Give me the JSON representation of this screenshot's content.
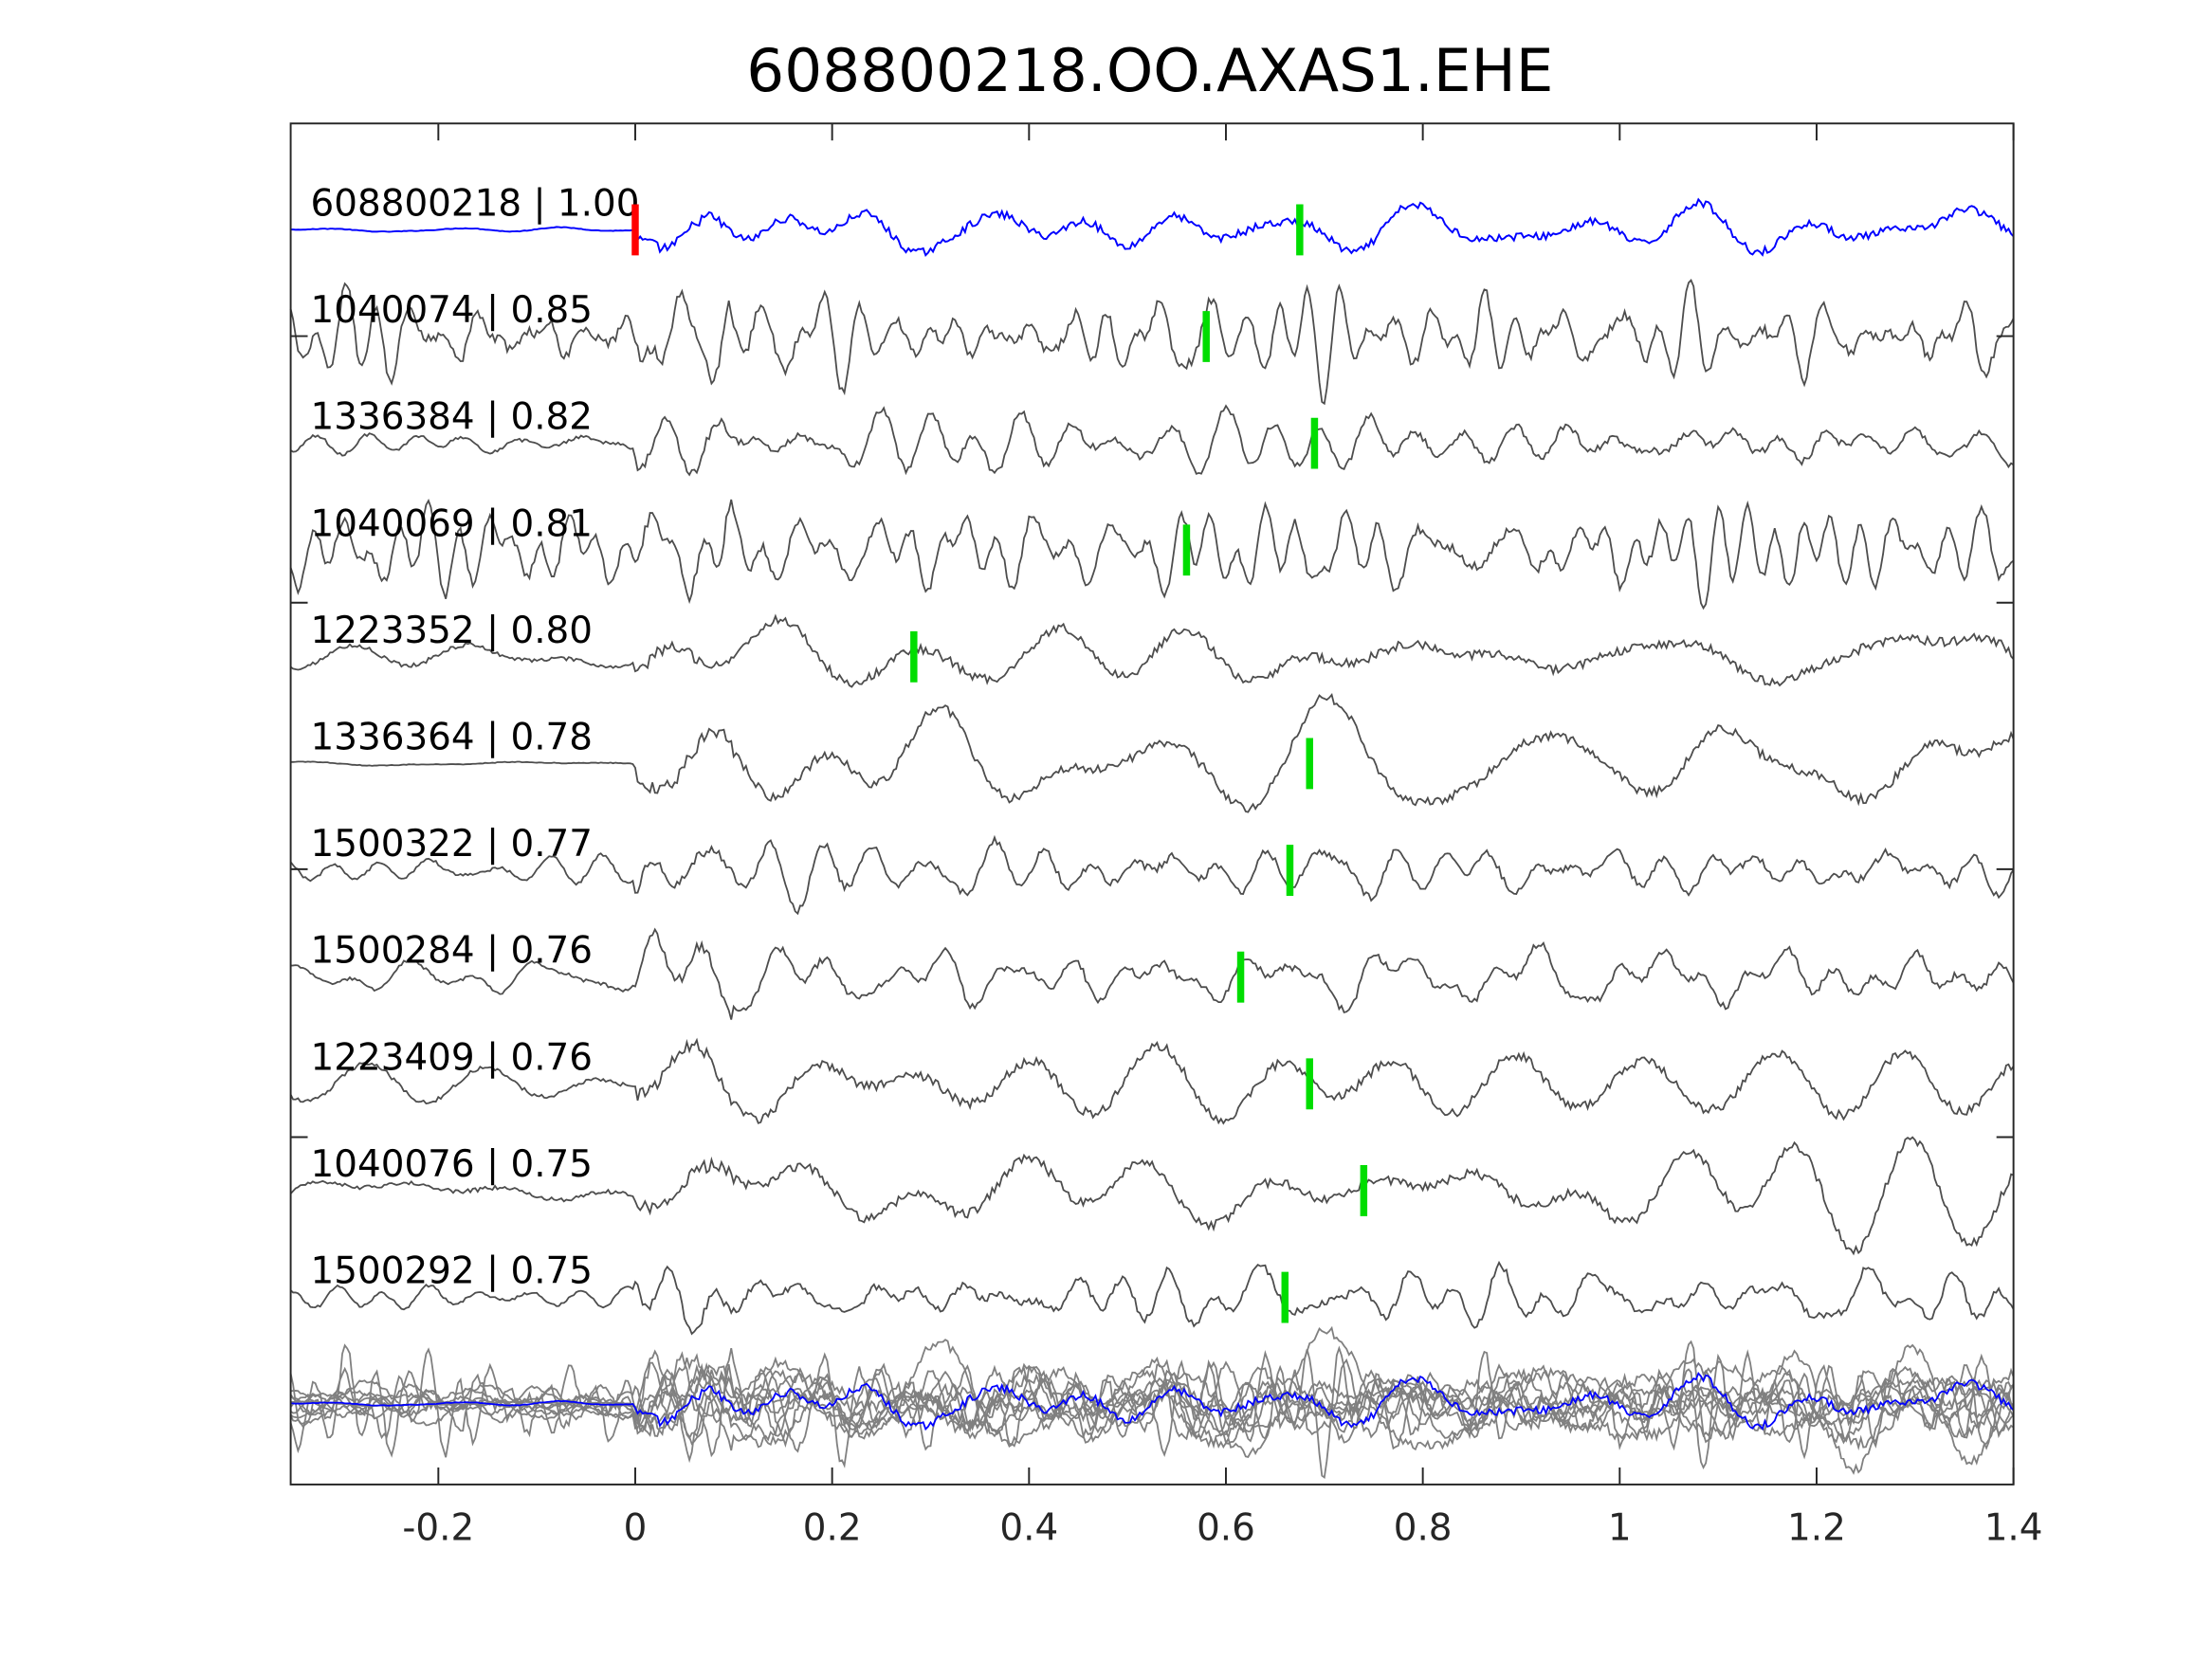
{
  "chart_data": {
    "type": "line",
    "title": "608800218.OO.AXAS1.EHE",
    "xlabel": "",
    "ylabel": "",
    "xlim": [
      -0.35,
      1.4
    ],
    "xticks": [
      -0.2,
      0,
      0.2,
      0.4,
      0.6,
      0.8,
      1,
      1.2,
      1.4
    ],
    "xtick_labels": [
      "-0.2",
      "0",
      "0.2",
      "0.4",
      "0.6",
      "0.8",
      "1",
      "1.2",
      "1.4"
    ],
    "grid": false,
    "reference_pick_time": 0,
    "series": [
      {
        "name": "608800218",
        "cc": "1.00",
        "label": "608800218 | 1.00",
        "color": "#0000ff",
        "pick": 0.675,
        "style": "smooth"
      },
      {
        "name": "1040074",
        "cc": "0.85",
        "label": "1040074 | 0.85",
        "color": "#4d4d4d",
        "pick": 0.58,
        "style": "highfreq"
      },
      {
        "name": "1336384",
        "cc": "0.82",
        "label": "1336384 | 0.82",
        "color": "#4d4d4d",
        "pick": 0.69,
        "style": "mid"
      },
      {
        "name": "1040069",
        "cc": "0.81",
        "label": "1040069 | 0.81",
        "color": "#4d4d4d",
        "pick": 0.56,
        "style": "highfreq"
      },
      {
        "name": "1223352",
        "cc": "0.80",
        "label": "1223352 | 0.80",
        "color": "#4d4d4d",
        "pick": 0.283,
        "style": "low"
      },
      {
        "name": "1336364",
        "cc": "0.78",
        "label": "1336364 | 0.78",
        "color": "#4d4d4d",
        "pick": 0.685,
        "style": "low"
      },
      {
        "name": "1500322",
        "cc": "0.77",
        "label": "1500322 | 0.77",
        "color": "#4d4d4d",
        "pick": 0.665,
        "style": "mid"
      },
      {
        "name": "1500284",
        "cc": "0.76",
        "label": "1500284 | 0.76",
        "color": "#4d4d4d",
        "pick": 0.615,
        "style": "mid"
      },
      {
        "name": "1223409",
        "cc": "0.76",
        "label": "1223409 | 0.76",
        "color": "#4d4d4d",
        "pick": 0.685,
        "style": "low"
      },
      {
        "name": "1040076",
        "cc": "0.75",
        "label": "1040076 | 0.75",
        "color": "#4d4d4d",
        "pick": 0.74,
        "style": "low"
      },
      {
        "name": "1500292",
        "cc": "0.75",
        "label": "1500292 | 0.75",
        "color": "#4d4d4d",
        "pick": 0.66,
        "style": "mid"
      }
    ],
    "stack": {
      "name": "overlay",
      "colors": {
        "traces": "#808080",
        "reference": "#0000ff"
      }
    },
    "pick_colors": {
      "reference": "#ff0000",
      "matched": "#00dd00"
    }
  }
}
